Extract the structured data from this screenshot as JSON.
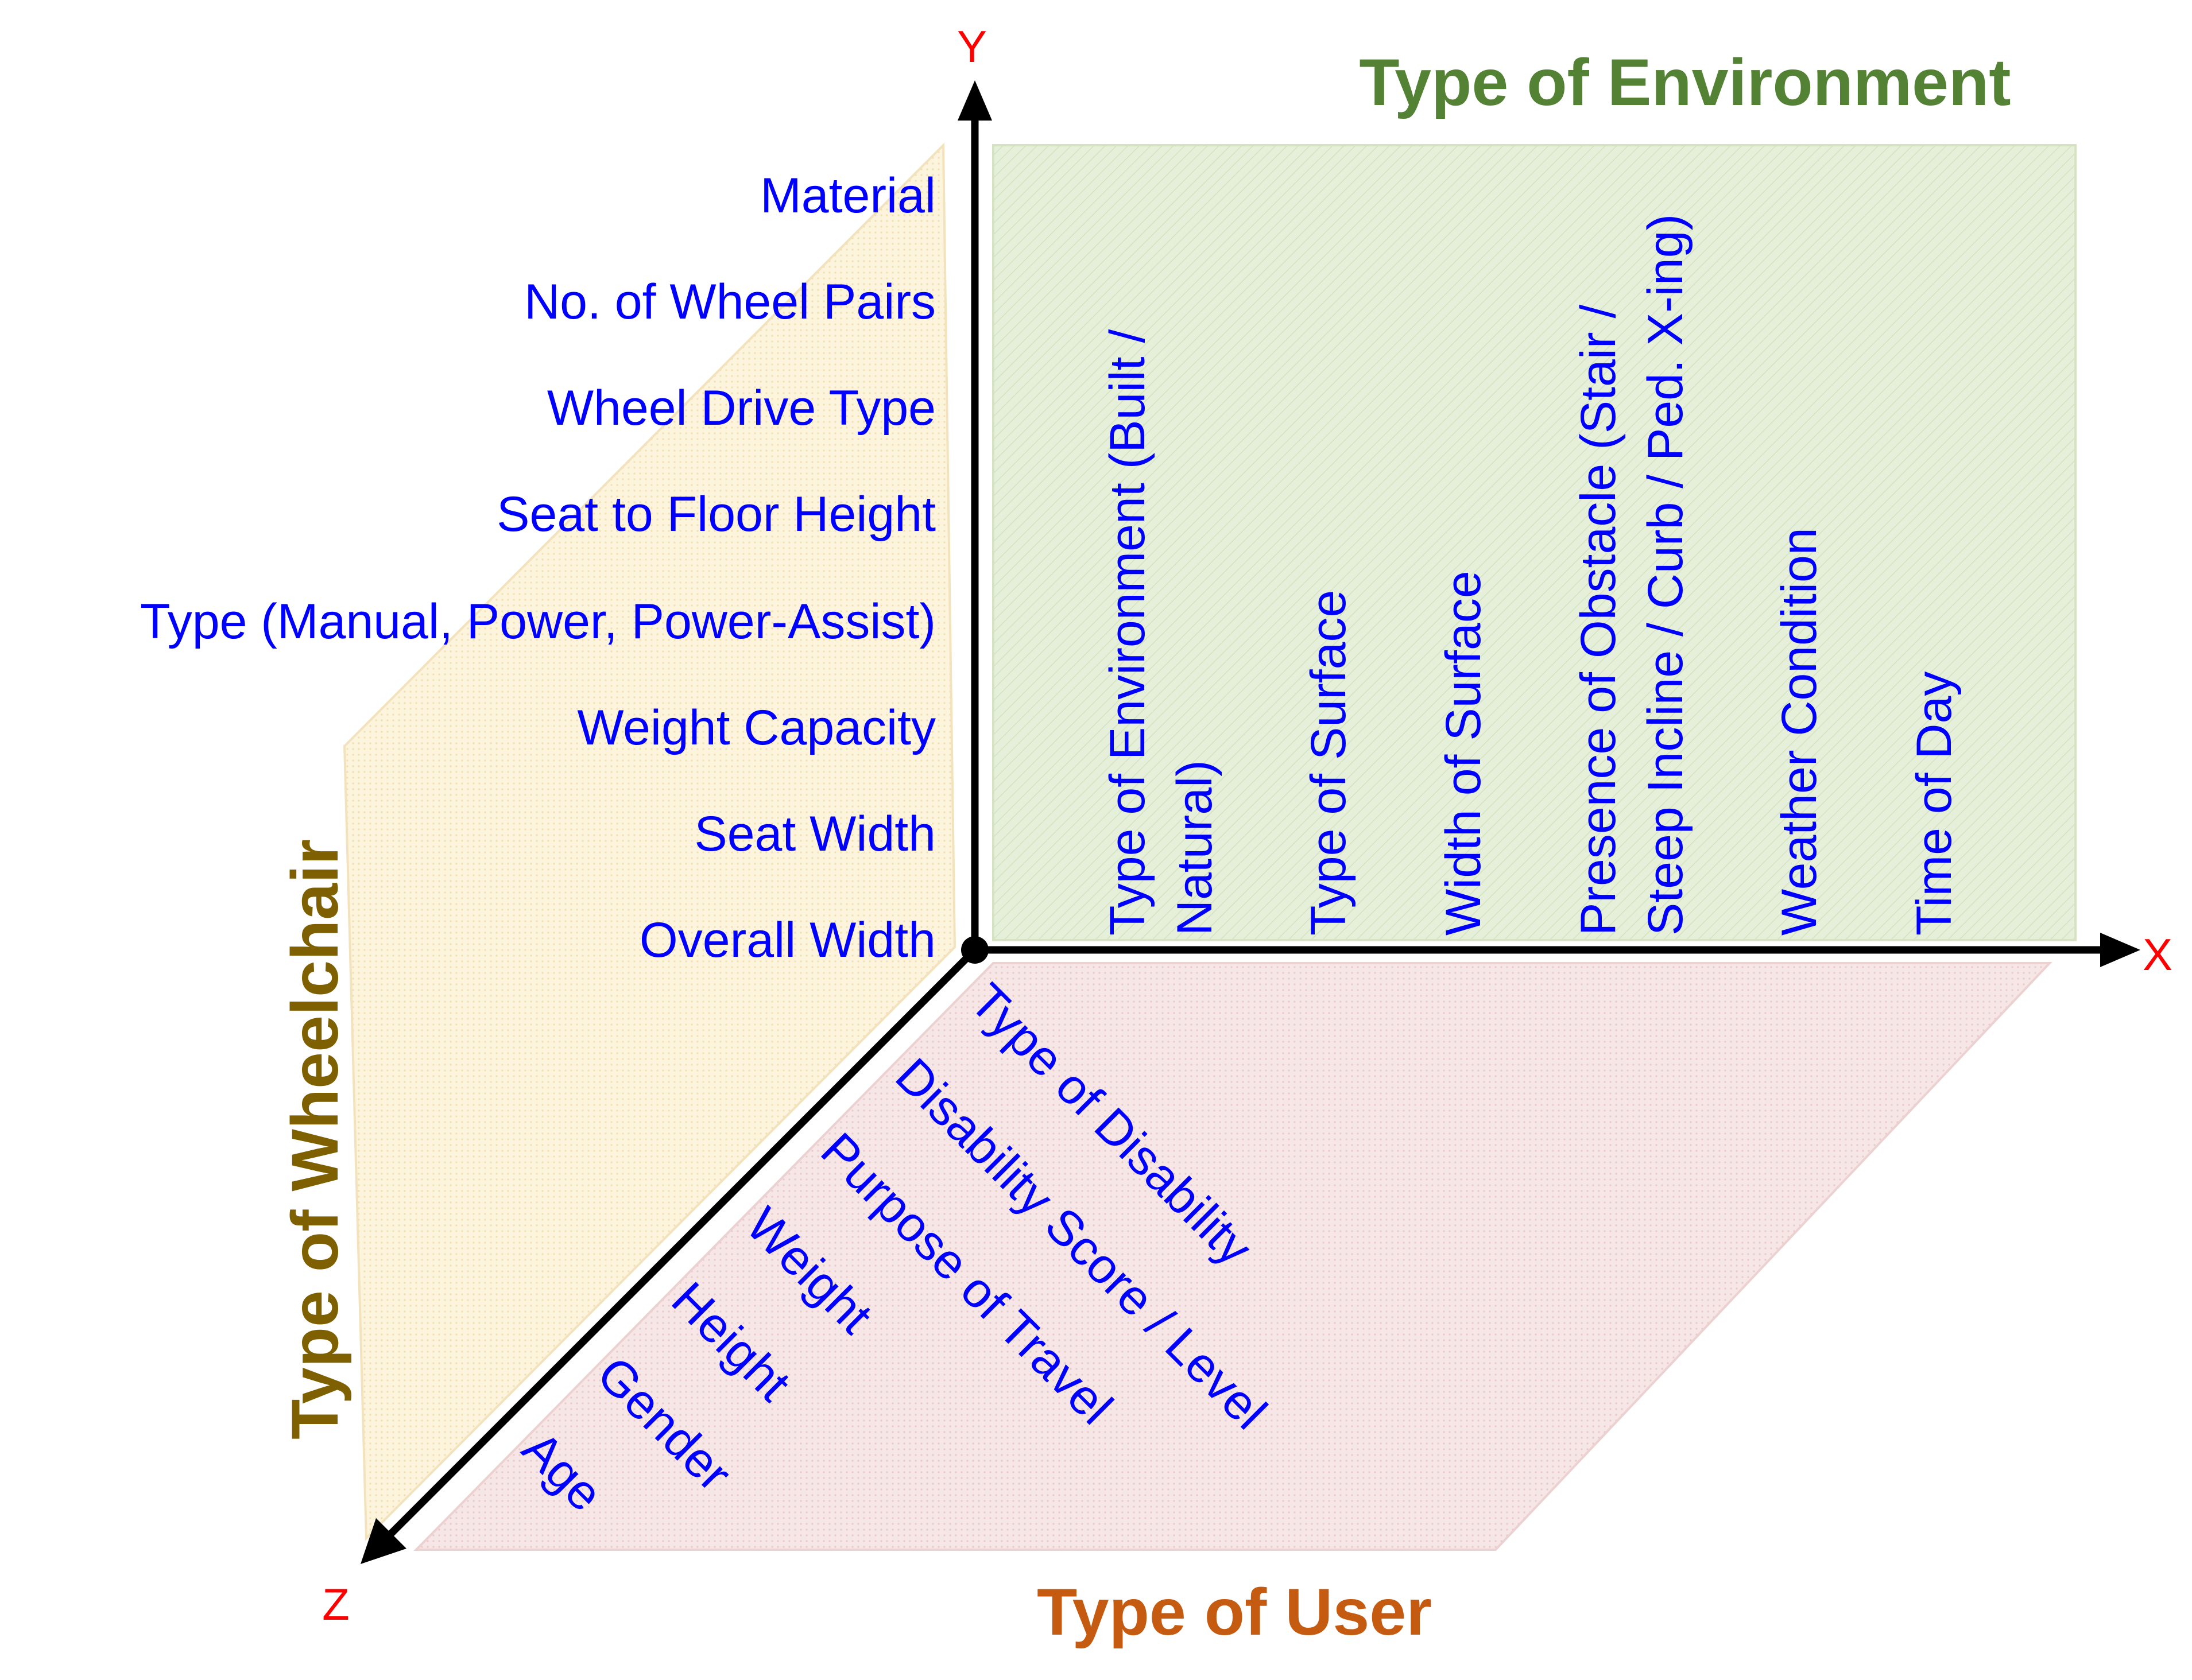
{
  "axes": {
    "x_label": "X",
    "y_label": "Y",
    "z_label": "Z",
    "label_color": "#ff0000"
  },
  "environment": {
    "title": "Type of Environment",
    "title_color": "#548235",
    "items": [
      "Type of Environment (Built /",
      "Natural)",
      "Type of Surface",
      "Width of Surface",
      "Presence of Obstacle (Stair /",
      "Steep Incline / Curb / Ped. X-ing)",
      "Weather Condition",
      "Time of Day"
    ]
  },
  "wheelchair": {
    "title": "Type of Wheelchair",
    "title_color": "#7f6000",
    "items": [
      "Material",
      "No. of Wheel Pairs",
      "Wheel Drive Type",
      "Seat to Floor Height",
      "Type (Manual, Power, Power-Assist)",
      "Weight Capacity",
      "Seat Width",
      "Overall Width"
    ]
  },
  "user": {
    "title": "Type of User",
    "title_color": "#c55a11",
    "items": [
      "Type of Disability",
      "Disability Score / Level",
      "Purpose of Travel",
      "Weight",
      "Height",
      "Gender",
      "Age"
    ]
  },
  "colors": {
    "item_text": "#0000ff",
    "environment_plane": "#e4eed8",
    "wheelchair_plane": "#fdf3dc",
    "user_plane": "#f6e4e4",
    "axis": "#000000"
  }
}
